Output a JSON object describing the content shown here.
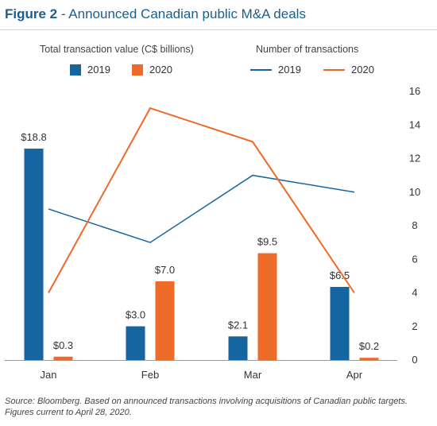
{
  "figure_label": "Figure 2",
  "title_text": " - Announced Canadian public M&A deals",
  "colors": {
    "y2019": "#1565a0",
    "y2020": "#ee6a28",
    "axis": "#9a9a9a",
    "text": "#333333"
  },
  "legend": {
    "bars_heading": "Total transaction value (C$ billions)",
    "lines_heading": "Number of transactions",
    "bar_2019": "2019",
    "bar_2020": "2020",
    "line_2019": "2019",
    "line_2020": "2020"
  },
  "chart_data": {
    "type": "bar+line",
    "categories": [
      "Jan",
      "Feb",
      "Mar",
      "Apr"
    ],
    "bar_series": [
      {
        "name": "2019",
        "values": [
          18.8,
          3.0,
          2.1,
          6.5
        ],
        "labels": [
          "$18.8",
          "$3.0",
          "$2.1",
          "$6.5"
        ]
      },
      {
        "name": "2020",
        "values": [
          0.3,
          7.0,
          9.5,
          0.2
        ],
        "labels": [
          "$0.3",
          "$7.0",
          "$9.5",
          "$0.2"
        ]
      }
    ],
    "bar_ylim": [
      0,
      24
    ],
    "line_series": [
      {
        "name": "2019",
        "values": [
          9,
          7,
          11,
          10
        ]
      },
      {
        "name": "2020",
        "values": [
          4,
          15,
          13,
          4
        ]
      }
    ],
    "line_ylim": [
      0,
      16
    ],
    "right_axis_ticks": [
      "0",
      "2",
      "4",
      "6",
      "8",
      "10",
      "12",
      "14",
      "16"
    ]
  },
  "source": "Source: Bloomberg. Based on announced transactions involving acquisitions of Canadian public targets. Figures current to April 28, 2020."
}
